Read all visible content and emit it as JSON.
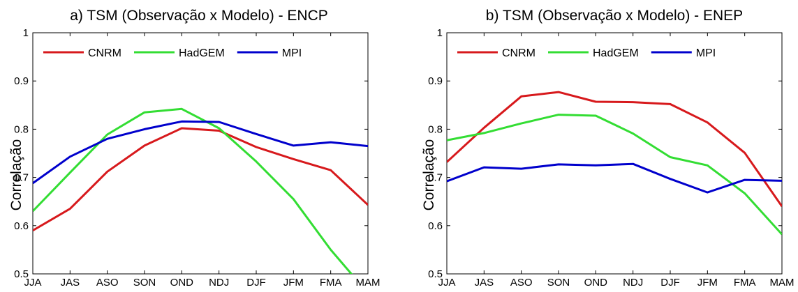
{
  "chart_data": [
    {
      "type": "line",
      "title": "a) TSM (Observação x Modelo) - ENCP",
      "xlabel": "",
      "ylabel": "Correlação",
      "categories": [
        "JJA",
        "JAS",
        "ASO",
        "SON",
        "OND",
        "NDJ",
        "DJF",
        "JFM",
        "FMA",
        "MAM"
      ],
      "ylim": [
        0.5,
        1
      ],
      "yticks": [
        "0.5",
        "0.6",
        "0.7",
        "0.8",
        "0.9",
        "1"
      ],
      "grid": false,
      "legend_position": "top",
      "series": [
        {
          "name": "CNRM",
          "color": "#d7191c",
          "values": [
            0.59,
            0.635,
            0.712,
            0.766,
            0.802,
            0.797,
            0.763,
            0.738,
            0.715,
            0.643
          ]
        },
        {
          "name": "HadGEM",
          "color": "#33dd33",
          "values": [
            0.63,
            0.71,
            0.789,
            0.835,
            0.842,
            0.802,
            0.733,
            0.655,
            0.55,
            0.46
          ]
        },
        {
          "name": "MPI",
          "color": "#0000cc",
          "values": [
            0.688,
            0.743,
            0.78,
            0.8,
            0.816,
            0.815,
            0.79,
            0.766,
            0.773,
            0.765
          ]
        }
      ]
    },
    {
      "type": "line",
      "title": "b) TSM (Observação x Modelo) - ENEP",
      "xlabel": "",
      "ylabel": "Correlação",
      "categories": [
        "JJA",
        "JAS",
        "ASO",
        "SON",
        "OND",
        "NDJ",
        "DJF",
        "JFM",
        "FMA",
        "MAM"
      ],
      "ylim": [
        0.5,
        1
      ],
      "yticks": [
        "0.5",
        "0.6",
        "0.7",
        "0.8",
        "0.9",
        "1"
      ],
      "grid": false,
      "legend_position": "top",
      "series": [
        {
          "name": "CNRM",
          "color": "#d7191c",
          "values": [
            0.732,
            0.803,
            0.868,
            0.877,
            0.857,
            0.856,
            0.852,
            0.814,
            0.751,
            0.64
          ]
        },
        {
          "name": "HadGEM",
          "color": "#33dd33",
          "values": [
            0.777,
            0.792,
            0.812,
            0.83,
            0.828,
            0.791,
            0.742,
            0.725,
            0.667,
            0.582
          ]
        },
        {
          "name": "MPI",
          "color": "#0000cc",
          "values": [
            0.692,
            0.721,
            0.718,
            0.727,
            0.725,
            0.728,
            0.697,
            0.669,
            0.695,
            0.693
          ]
        }
      ]
    }
  ]
}
